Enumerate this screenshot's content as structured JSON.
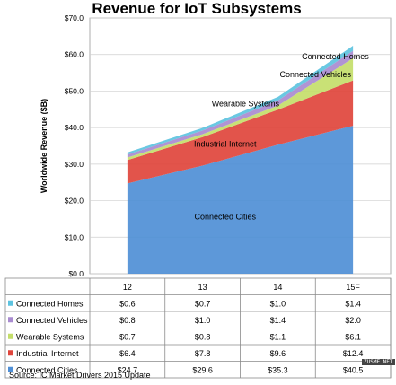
{
  "chart_data": {
    "type": "area",
    "title": "Revenue for IoT Subsystems",
    "ylabel": "Worldwide Revenue ($B)",
    "xlabel": "",
    "ylim": [
      0,
      70
    ],
    "yticks": [
      "$0.0",
      "$10.0",
      "$20.0",
      "$30.0",
      "$40.0",
      "$50.0",
      "$60.0",
      "$70.0"
    ],
    "categories": [
      "12",
      "13",
      "14",
      "15F"
    ],
    "stacked": true,
    "grid": true,
    "series": [
      {
        "name": "Connected Cities",
        "values": [
          24.7,
          29.6,
          35.3,
          40.5
        ],
        "labels": [
          "$24.7",
          "$29.6",
          "$35.3",
          "$40.5"
        ],
        "color": "#4f8fd6"
      },
      {
        "name": "Industrial Internet",
        "values": [
          6.4,
          7.8,
          9.6,
          12.4
        ],
        "labels": [
          "$6.4",
          "$7.8",
          "$9.6",
          "$12.4"
        ],
        "color": "#e0453c"
      },
      {
        "name": "Wearable Systems",
        "values": [
          0.7,
          0.8,
          1.1,
          6.1
        ],
        "labels": [
          "$0.7",
          "$0.8",
          "$1.1",
          "$6.1"
        ],
        "color": "#c4de6a"
      },
      {
        "name": "Connected Vehicles",
        "values": [
          0.8,
          1.0,
          1.4,
          2.0
        ],
        "labels": [
          "$0.8",
          "$1.0",
          "$1.4",
          "$2.0"
        ],
        "color": "#a98bd0"
      },
      {
        "name": "Connected Homes",
        "values": [
          0.6,
          0.7,
          1.0,
          1.4
        ],
        "labels": [
          "$0.6",
          "$0.7",
          "$1.0",
          "$1.4"
        ],
        "color": "#5dc3e0"
      }
    ]
  },
  "source": "Source:  IC Market Drivers 2015 Update",
  "watermark": "ZUSME.NET"
}
